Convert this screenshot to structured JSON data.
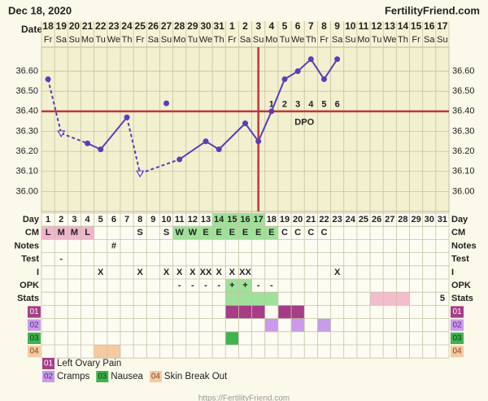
{
  "header": {
    "date": "Dec 18, 2020",
    "site": "FertilityFriend.com",
    "footer": "https://FertilityFriend.com"
  },
  "chart_data": {
    "type": "line",
    "x_label": "Date",
    "categories": [
      "18",
      "19",
      "20",
      "21",
      "22",
      "23",
      "24",
      "25",
      "26",
      "27",
      "28",
      "29",
      "30",
      "31",
      "1",
      "2",
      "3",
      "4",
      "5",
      "6",
      "7",
      "8",
      "9",
      "10",
      "11",
      "12",
      "13",
      "14",
      "15",
      "16",
      "17"
    ],
    "weekdays": [
      "Fr",
      "Sa",
      "Su",
      "Mo",
      "Tu",
      "We",
      "Th",
      "Fr",
      "Sa",
      "Su",
      "Mo",
      "Tu",
      "We",
      "Th",
      "Fr",
      "Sa",
      "Su",
      "Mo",
      "Tu",
      "We",
      "Th",
      "Fr",
      "Sa",
      "Su",
      "Mo",
      "Tu",
      "We",
      "Th",
      "Fr",
      "Sa",
      "Su"
    ],
    "values": [
      36.56,
      36.29,
      null,
      36.24,
      36.21,
      null,
      36.37,
      36.09,
      null,
      36.44,
      36.16,
      null,
      36.25,
      36.21,
      null,
      36.34,
      36.25,
      36.4,
      36.56,
      36.6,
      36.66,
      36.56,
      36.66,
      null,
      null,
      null,
      null,
      null,
      null,
      null,
      null
    ],
    "markers": [
      "circle",
      "triangle",
      null,
      "circle",
      "circle",
      null,
      "circle",
      "triangle",
      null,
      "point",
      "circle",
      null,
      "circle",
      "circle",
      null,
      "circle",
      "circle",
      "circle",
      "circle",
      "circle",
      "circle",
      "circle",
      "circle",
      null,
      null,
      null,
      null,
      null,
      null,
      null,
      null
    ],
    "color": "#5b3db8",
    "ylim": [
      35.9,
      36.72
    ],
    "yticks": [
      {
        "value": 36.0,
        "label": "36.00"
      },
      {
        "value": 36.1,
        "label": "36.10"
      },
      {
        "value": 36.2,
        "label": "36.20"
      },
      {
        "value": 36.3,
        "label": "36.30"
      },
      {
        "value": 36.4,
        "label": "36.40"
      },
      {
        "value": 36.5,
        "label": "36.50"
      },
      {
        "value": 36.6,
        "label": "36.60"
      }
    ],
    "grid": true,
    "coverline": 36.4,
    "ovulation_day": 17,
    "marker_line_color": "#c0363a",
    "dpo_label": "DPO",
    "dpo_start_day": 18,
    "dpo": [
      1,
      2,
      3,
      4,
      5,
      6
    ]
  },
  "table": {
    "day_label": "Day",
    "days": [
      1,
      2,
      3,
      4,
      5,
      6,
      7,
      8,
      9,
      10,
      11,
      12,
      13,
      14,
      15,
      16,
      17,
      18,
      19,
      20,
      21,
      22,
      23,
      24,
      25,
      26,
      27,
      28,
      29,
      30,
      31
    ],
    "fertile_days": [
      14,
      15,
      16,
      17
    ],
    "cm_label": "CM",
    "cm": [
      "L",
      "M",
      "M",
      "L",
      null,
      null,
      null,
      "S",
      null,
      "S",
      "W",
      "W",
      "E",
      "E",
      "E",
      "E",
      "E",
      "E",
      "C",
      "C",
      "C",
      "C",
      null,
      null,
      null,
      null,
      null,
      null,
      null,
      null,
      null
    ],
    "cm_colors": {
      "L": "#f1b6cc",
      "M": "#f1b6cc",
      "W": "#9ee29a",
      "E": "#9ee29a"
    },
    "notes_label": "Notes",
    "notes": [
      null,
      null,
      null,
      null,
      null,
      "#",
      null,
      null,
      null,
      null,
      null,
      null,
      null,
      null,
      null,
      null,
      null,
      null,
      null,
      null,
      null,
      null,
      null,
      null,
      null,
      null,
      null,
      null,
      null,
      null,
      null
    ],
    "test_label": "Test",
    "test": [
      null,
      "-",
      null,
      null,
      null,
      null,
      null,
      null,
      null,
      null,
      null,
      null,
      null,
      null,
      null,
      null,
      null,
      null,
      null,
      null,
      null,
      null,
      null,
      null,
      null,
      null,
      null,
      null,
      null,
      null,
      null
    ],
    "i_label": "I",
    "i": [
      null,
      null,
      null,
      null,
      "X",
      null,
      null,
      "X",
      null,
      "X",
      "X",
      "X",
      "XX",
      "X",
      "X",
      "XX",
      null,
      null,
      null,
      null,
      null,
      null,
      "X",
      null,
      null,
      null,
      null,
      null,
      null,
      null,
      null
    ],
    "opk_label": "OPK",
    "opk": [
      null,
      null,
      null,
      null,
      null,
      null,
      null,
      null,
      null,
      null,
      "-",
      "-",
      "-",
      "-",
      "+",
      "+",
      "-",
      "-",
      null,
      null,
      null,
      null,
      null,
      null,
      null,
      null,
      null,
      null,
      null,
      null,
      null
    ],
    "opk_colors": {
      "+": "#9ee29a"
    },
    "stats_label": "Stats",
    "stats": [
      null,
      null,
      null,
      null,
      null,
      null,
      null,
      null,
      null,
      null,
      null,
      null,
      null,
      null,
      null,
      null,
      null,
      null,
      null,
      null,
      null,
      null,
      null,
      null,
      null,
      null,
      null,
      null,
      null,
      null,
      5
    ],
    "stats_green": [
      15,
      16,
      17,
      18
    ],
    "stats_pink": [
      26,
      27,
      28
    ],
    "fertile_color": "#9ee29a",
    "pink_color": "#f4bccd",
    "symptoms": [
      {
        "code": "01",
        "name": "Left Ovary Pain",
        "color": "#a63d86",
        "text_color": "#ffffff",
        "days": [
          15,
          16,
          17,
          19,
          20
        ]
      },
      {
        "code": "02",
        "name": "Cramps",
        "color": "#c99bea",
        "text_color": "#5a2a80",
        "days": [
          18,
          20,
          22
        ]
      },
      {
        "code": "03",
        "name": "Nausea",
        "color": "#3fb34f",
        "text_color": "#0d3d14",
        "days": [
          15
        ]
      },
      {
        "code": "04",
        "name": "Skin Break Out",
        "color": "#f6c9a3",
        "text_color": "#7a4a20",
        "days": [
          5,
          6
        ]
      }
    ]
  }
}
